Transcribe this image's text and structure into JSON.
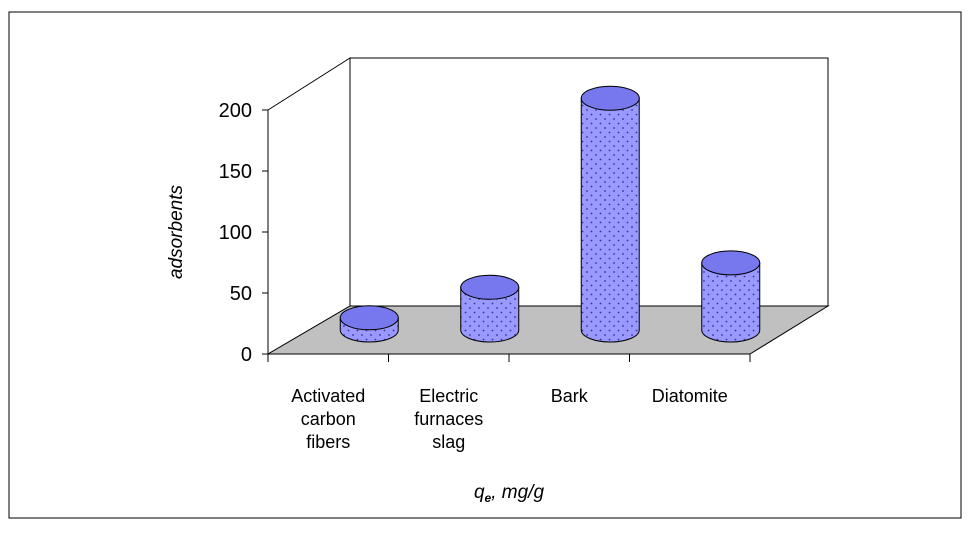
{
  "chart_data": {
    "type": "bar",
    "style": "3d-cylinder",
    "categories": [
      [
        "Activated",
        "carbon",
        "fibers"
      ],
      [
        "Electric",
        "furnaces",
        "slag"
      ],
      [
        "Bark"
      ],
      [
        "Diatomite"
      ]
    ],
    "values": [
      10,
      35,
      190,
      55
    ],
    "ylabel": "adsorbents",
    "xlabel_main": "q",
    "xlabel_sub": "e",
    "xlabel_rest": ", mg/g",
    "ylim": [
      0,
      200
    ],
    "yticks": [
      "0",
      "50",
      "100",
      "150",
      "200"
    ],
    "grid": false,
    "legend": "none",
    "colors": {
      "bar_fill": "#9999ff",
      "bar_top": "#7777ee",
      "bar_stroke": "#000000",
      "floor": "#c0c0c0",
      "dots": "#333399"
    }
  }
}
